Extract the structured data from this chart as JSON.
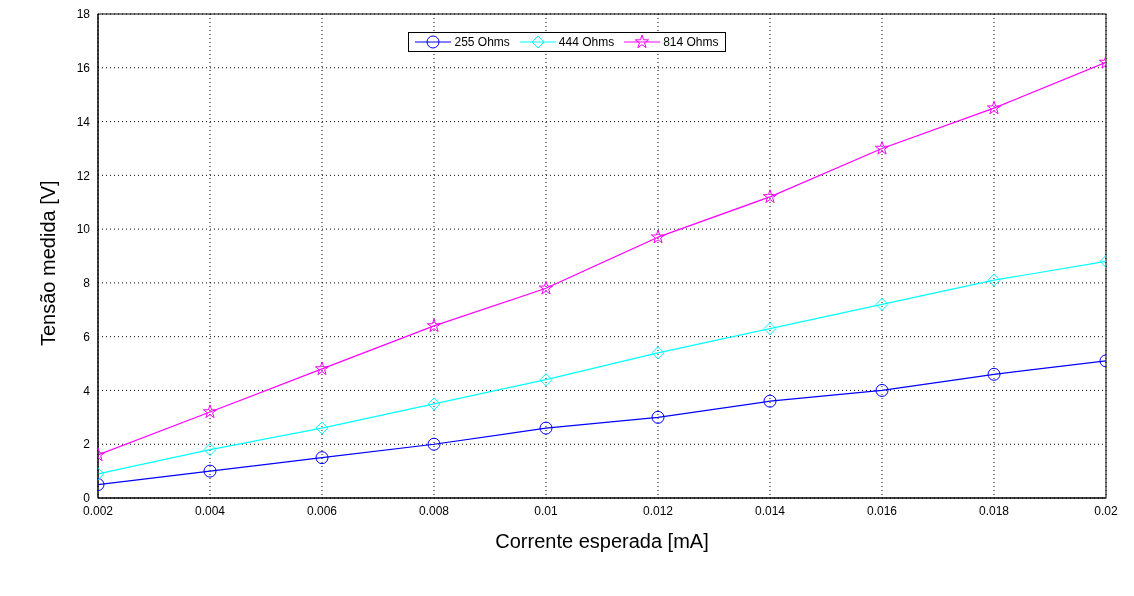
{
  "chart_data": {
    "type": "line",
    "xlabel": "Corrente esperada [mA]",
    "ylabel": "Tensão medida [V]",
    "x": [
      0.002,
      0.004,
      0.006,
      0.008,
      0.01,
      0.012,
      0.014,
      0.016,
      0.018,
      0.02
    ],
    "series": [
      {
        "name": "255 Ohms",
        "color": "#0000ff",
        "marker": "circle",
        "values": [
          0.5,
          1.0,
          1.5,
          2.0,
          2.6,
          3.0,
          3.6,
          4.0,
          4.6,
          5.1
        ]
      },
      {
        "name": "444 Ohms",
        "color": "#00ffff",
        "marker": "diamond",
        "values": [
          0.9,
          1.8,
          2.6,
          3.5,
          4.4,
          5.4,
          6.3,
          7.2,
          8.1,
          8.8
        ]
      },
      {
        "name": "814 Ohms",
        "color": "#ff00ff",
        "marker": "star",
        "values": [
          1.6,
          3.2,
          4.8,
          6.4,
          7.8,
          9.7,
          11.2,
          13.0,
          14.5,
          16.2
        ]
      }
    ],
    "xlim": [
      0.002,
      0.02
    ],
    "xticks": [
      0.002,
      0.004,
      0.006,
      0.008,
      0.01,
      0.012,
      0.014,
      0.016,
      0.018,
      0.02
    ],
    "ylim": [
      0,
      18
    ],
    "yticks": [
      0,
      2,
      4,
      6,
      8,
      10,
      12,
      14,
      16,
      18
    ],
    "grid": true,
    "legend": "top",
    "line_style": "solid"
  }
}
